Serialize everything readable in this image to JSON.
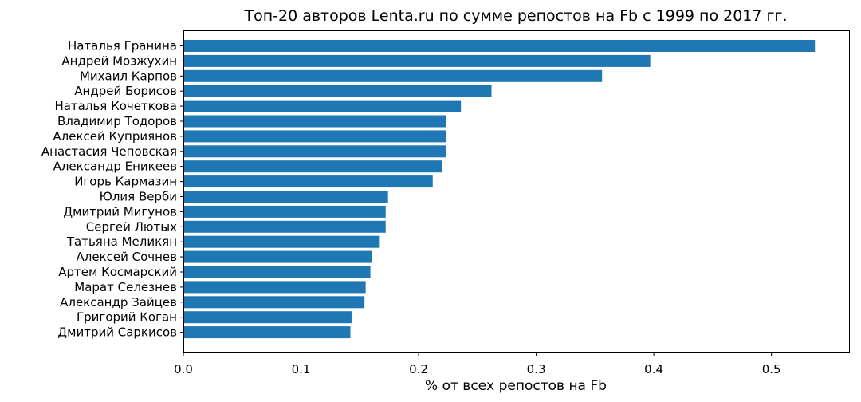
{
  "chart_data": {
    "type": "bar",
    "orientation": "horizontal",
    "title": "Топ-20 авторов Lenta.ru по сумме репостов на Fb с 1999 по 2017 гг.",
    "xlabel": "% от всех репостов на Fb",
    "ylabel": "",
    "xlim": [
      0,
      0.566
    ],
    "xticks": [
      0.0,
      0.1,
      0.2,
      0.3,
      0.4,
      0.5
    ],
    "xtick_labels": [
      "0.0",
      "0.1",
      "0.2",
      "0.3",
      "0.4",
      "0.5"
    ],
    "grid": false,
    "bar_color": "#1f77b4",
    "categories": [
      "Наталья Гранина",
      "Андрей Мозжухин",
      "Михаил Карпов",
      "Андрей Борисов",
      "Наталья Кочеткова",
      "Владимир Тодоров",
      "Алексей Куприянов",
      "Анастасия Чеповская",
      "Александр Еникеев",
      "Игорь Кармазин",
      "Юлия Верби",
      "Дмитрий Мигунов",
      "Сергей Лютых",
      "Татьяна Меликян",
      "Алексей Сочнев",
      "Артем Космарский",
      "Марат Селезнев",
      "Александр Зайцев",
      "Григорий Коган",
      "Дмитрий Саркисов"
    ],
    "values": [
      0.537,
      0.397,
      0.356,
      0.262,
      0.236,
      0.223,
      0.223,
      0.223,
      0.22,
      0.212,
      0.174,
      0.172,
      0.172,
      0.167,
      0.16,
      0.159,
      0.155,
      0.154,
      0.143,
      0.142
    ]
  }
}
